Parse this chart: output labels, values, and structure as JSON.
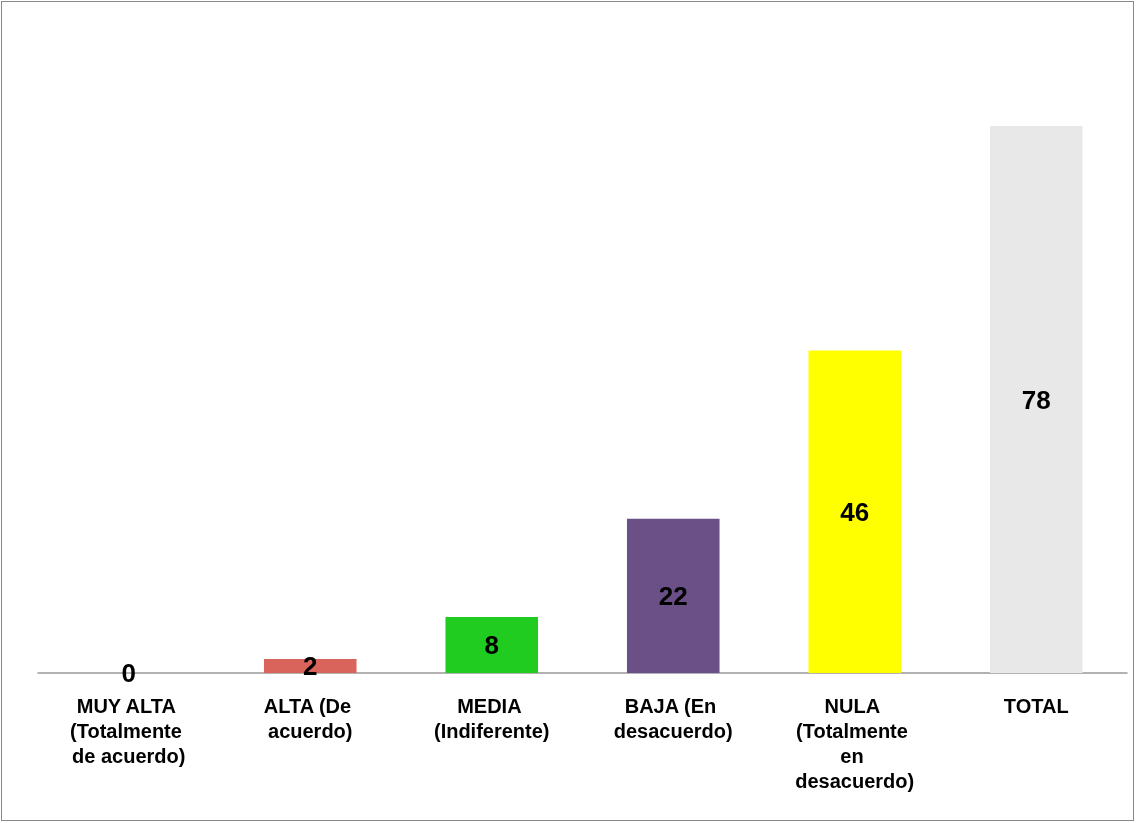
{
  "chart_data": {
    "type": "bar",
    "categories": [
      "MUY ALTA (Totalmente de acuerdo)",
      "ALTA (De acuerdo)",
      "MEDIA (Indiferente)",
      "BAJA (En desacuerdo)",
      "NULA (Totalmente en desacuerdo)",
      "TOTAL"
    ],
    "values": [
      0,
      2,
      8,
      22,
      46,
      78
    ],
    "colors": [
      "#4f81bd",
      "#d9645c",
      "#1fcc1f",
      "#6b5088",
      "#ffff00",
      "#e8e8e8"
    ],
    "data_labels": true,
    "grid": false,
    "tick_labels": "x"
  }
}
